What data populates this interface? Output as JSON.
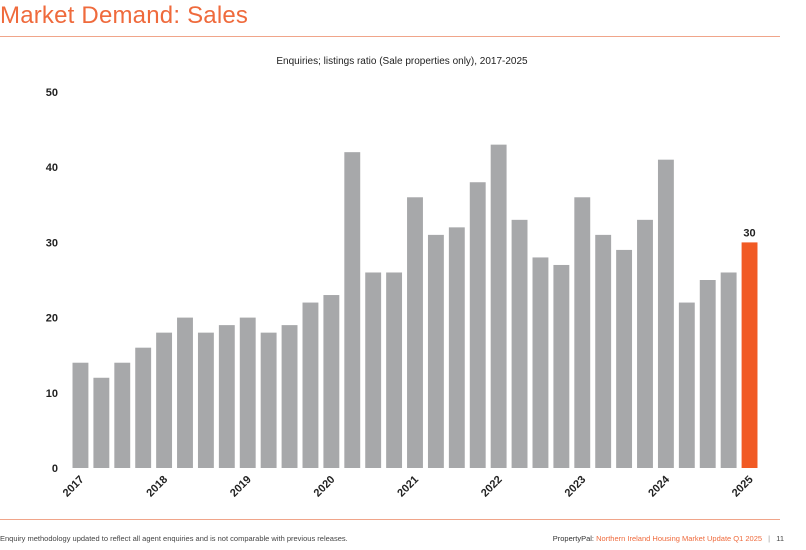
{
  "header": {
    "title": "Market Demand: Sales"
  },
  "chart_data": {
    "type": "bar",
    "title": "Enquiries; listings ratio (Sale properties only), 2017-2025",
    "xlabel": "",
    "ylabel": "",
    "ylim": [
      0,
      50
    ],
    "yticks": [
      0,
      10,
      20,
      30,
      40,
      50
    ],
    "x_tick_labels": [
      "2017",
      "2018",
      "2019",
      "2020",
      "2021",
      "2022",
      "2023",
      "2024",
      "2025"
    ],
    "values": [
      14,
      12,
      14,
      16,
      18,
      20,
      18,
      19,
      20,
      18,
      19,
      22,
      23,
      42,
      26,
      26,
      36,
      31,
      32,
      38,
      43,
      33,
      28,
      27,
      36,
      31,
      29,
      33,
      41,
      22,
      25,
      26,
      30
    ],
    "highlight_index": 32,
    "highlight_label": "30",
    "colors": {
      "bar": "#a7a8aa",
      "highlight": "#f15a24",
      "text": "#222222"
    },
    "grid": false,
    "legend": "none"
  },
  "footer": {
    "note": "Enquiry methodology updated to reflect all agent enquiries and is not comparable with previous releases.",
    "brand": "PropertyPal:",
    "report": "Northern Ireland Housing Market Update Q1 2025",
    "separator": "|",
    "page": "11"
  }
}
